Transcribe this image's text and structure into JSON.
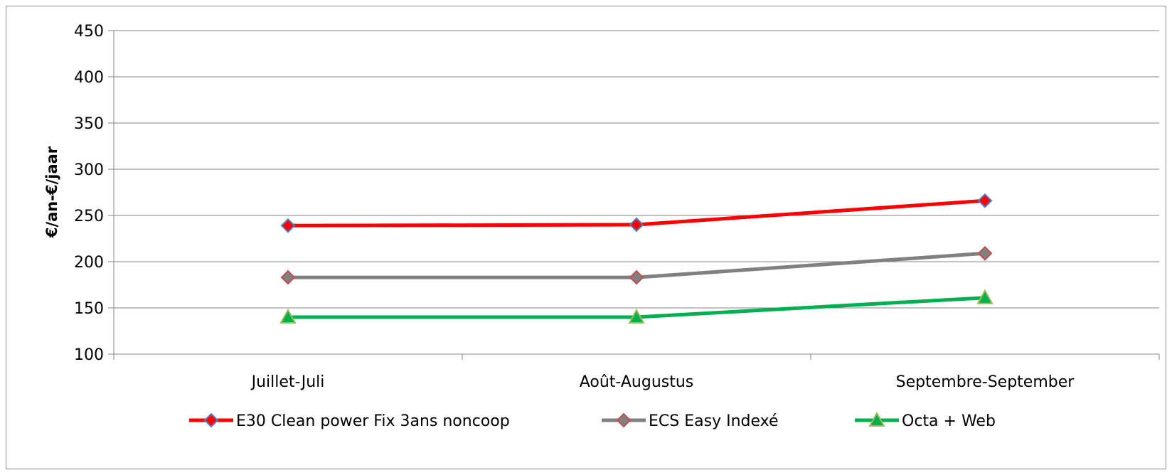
{
  "chart_data": {
    "type": "line",
    "title": "",
    "xlabel": "",
    "ylabel": "€/an-€/jaar",
    "categories": [
      "Juillet-Juli",
      "Août-Augustus",
      "Septembre-September"
    ],
    "ylim": [
      100,
      450
    ],
    "yticks": [
      100,
      150,
      200,
      250,
      300,
      350,
      400,
      450
    ],
    "grid": true,
    "legend_position": "bottom",
    "series": [
      {
        "name": "E30 Clean power Fix 3ans noncoop",
        "values": [
          239,
          240,
          266
        ],
        "color": "#ff0000",
        "marker": "diamond",
        "marker_fill": "#ff0000",
        "marker_stroke": "#4f81bd"
      },
      {
        "name": "ECS Easy Indexé",
        "values": [
          183,
          183,
          209
        ],
        "color": "#808080",
        "marker": "diamond",
        "marker_fill": "#808080",
        "marker_stroke": "#c0504d"
      },
      {
        "name": "Octa + Web",
        "values": [
          140,
          140,
          161
        ],
        "color": "#00b050",
        "marker": "triangle",
        "marker_fill": "#00b050",
        "marker_stroke": "#9bbb59"
      }
    ]
  }
}
